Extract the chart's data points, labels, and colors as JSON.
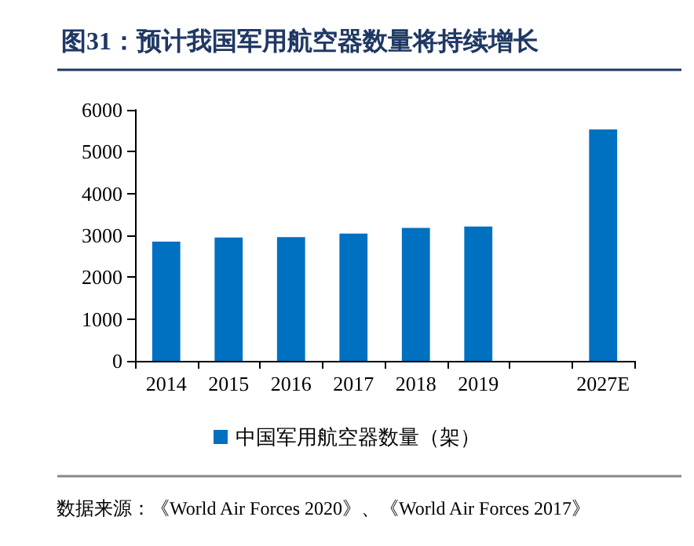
{
  "chart_data": {
    "type": "bar",
    "title": "图31：预计我国军用航空器数量将持续增长",
    "categories": [
      "2014",
      "2015",
      "2016",
      "2017",
      "2018",
      "2019",
      null,
      "2027E"
    ],
    "series": [
      {
        "name": "中国军用航空器数量（架）",
        "color": "#0070c0",
        "values": [
          2850,
          2950,
          2960,
          3040,
          3180,
          3210,
          null,
          5530
        ]
      }
    ],
    "ylim": [
      0,
      6000
    ],
    "yticks": [
      0,
      1000,
      2000,
      3000,
      4000,
      5000,
      6000
    ],
    "grid": false,
    "legend": "bottom",
    "annotations": [
      "数据来源：《World Air Forces 2020》、《World Air Forces 2017》"
    ]
  }
}
